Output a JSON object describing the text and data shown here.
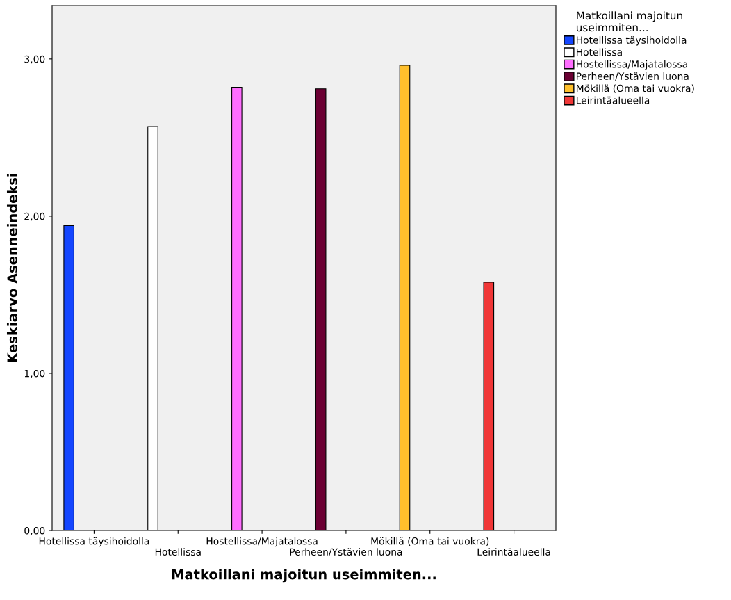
{
  "chart_data": {
    "type": "bar",
    "xlabel": "Matkoillani majoitun useimmiten...",
    "ylabel": "Keskiarvo Asenneindeksi",
    "legend_title": "Matkoillani majoitun\nuseimmiten...",
    "categories": [
      "Hotellissa täysihoidolla",
      "Hotellissa",
      "Hostellissa/Majatalossa",
      "Perheen/Ystävien luona",
      "Mökillä (Oma tai vuokra)",
      "Leirintäalueella"
    ],
    "series": [
      {
        "name": "Hotellissa täysihoidolla",
        "color": "#1446ff",
        "values": [
          1.94,
          null,
          null,
          null,
          null,
          null
        ]
      },
      {
        "name": "Hotellissa",
        "color": "#ffffff",
        "values": [
          null,
          2.57,
          null,
          null,
          null,
          null
        ]
      },
      {
        "name": "Hostellissa/Majatalossa",
        "color": "#ff6eff",
        "values": [
          null,
          null,
          2.82,
          null,
          null,
          null
        ]
      },
      {
        "name": "Perheen/Ystävien luona",
        "color": "#6b0033",
        "values": [
          null,
          null,
          null,
          2.81,
          null,
          null
        ]
      },
      {
        "name": "Mökillä (Oma tai vuokra)",
        "color": "#ffc02c",
        "values": [
          null,
          null,
          null,
          null,
          2.96,
          null
        ]
      },
      {
        "name": "Leirintäalueella",
        "color": "#f03737",
        "values": [
          null,
          null,
          null,
          null,
          null,
          1.58
        ]
      }
    ],
    "ylim": [
      0,
      3.34
    ],
    "yticks": [
      {
        "value": 0,
        "label": "0,00"
      },
      {
        "value": 1,
        "label": "1,00"
      },
      {
        "value": 2,
        "label": "2,00"
      },
      {
        "value": 3,
        "label": "3,00"
      }
    ],
    "grid": false,
    "legend": "right"
  }
}
